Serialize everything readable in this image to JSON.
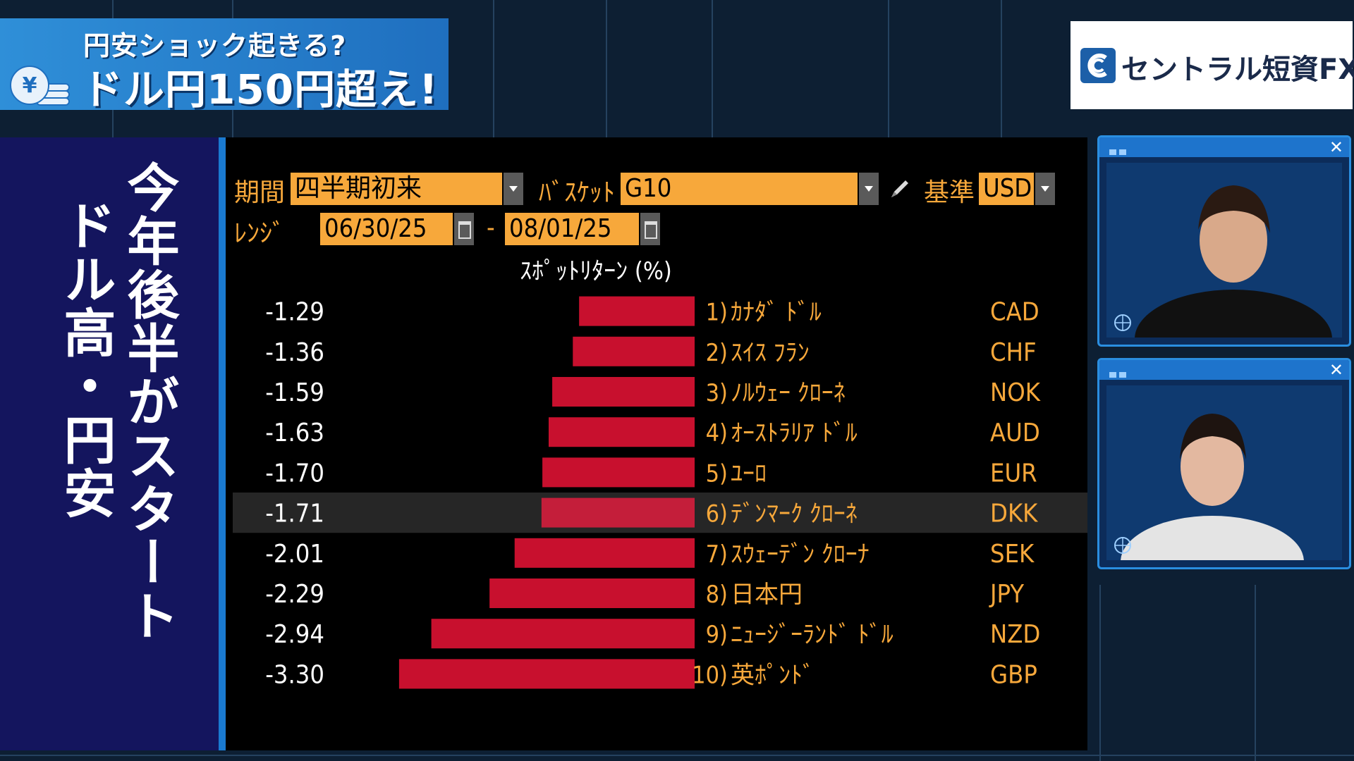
{
  "banner": {
    "line1": "円安ショック起きる?",
    "line2": "ドル円150円超え!"
  },
  "logo": {
    "text": "セントラル短資FX",
    "icon": "central-tanshi-logo-icon"
  },
  "side_title": {
    "line1": "今年後半がスタート",
    "line2": "ドル高・円安"
  },
  "terminal": {
    "period_label": "期間",
    "period_value": "四半期初来",
    "basket_label": "ﾊﾞｽｹｯﾄ",
    "basket_value": "G10",
    "base_label": "基準",
    "base_value": "USD",
    "range_label": "ﾚﾝｼﾞ",
    "range_start": "06/30/25",
    "range_sep": "-",
    "range_end": "08/01/25"
  },
  "chart_data": {
    "type": "bar",
    "orientation": "horizontal",
    "title": "ｽﾎﾟｯﾄﾘﾀｰﾝ (%)",
    "highlight_index": 5,
    "colors": {
      "bar": "#c8102e",
      "label": "#f7a83b",
      "value": "#ffffff",
      "highlight_row": "#262626"
    },
    "categories": [
      "ｶﾅﾀﾞ ﾄﾞﾙ",
      "ｽｲｽ ﾌﾗﾝ",
      "ﾉﾙｳｪｰ ｸﾛｰﾈ",
      "ｵｰｽﾄﾗﾘｱ ﾄﾞﾙ",
      "ﾕｰﾛ",
      "ﾃﾞﾝﾏｰｸ ｸﾛｰﾈ",
      "ｽｳｪｰﾃﾞﾝ ｸﾛｰﾅ",
      "日本円",
      "ﾆｭｰｼﾞｰﾗﾝﾄﾞ ﾄﾞﾙ",
      "英ﾎﾟﾝﾄﾞ"
    ],
    "ranks": [
      "1)",
      "2)",
      "3)",
      "4)",
      "5)",
      "6)",
      "7)",
      "8)",
      "9)",
      "10)"
    ],
    "codes": [
      "CAD",
      "CHF",
      "NOK",
      "AUD",
      "EUR",
      "DKK",
      "SEK",
      "JPY",
      "NZD",
      "GBP"
    ],
    "values": [
      -1.29,
      -1.36,
      -1.59,
      -1.63,
      -1.7,
      -1.71,
      -2.01,
      -2.29,
      -2.94,
      -3.3
    ],
    "value_labels": [
      "-1.29",
      "-1.36",
      "-1.59",
      "-1.63",
      "-1.70",
      "-1.71",
      "-2.01",
      "-2.29",
      "-2.94",
      "-3.30"
    ]
  },
  "videos": [
    {
      "name": "participant-1",
      "close_icon": "✕"
    },
    {
      "name": "participant-2",
      "close_icon": "✕"
    }
  ]
}
